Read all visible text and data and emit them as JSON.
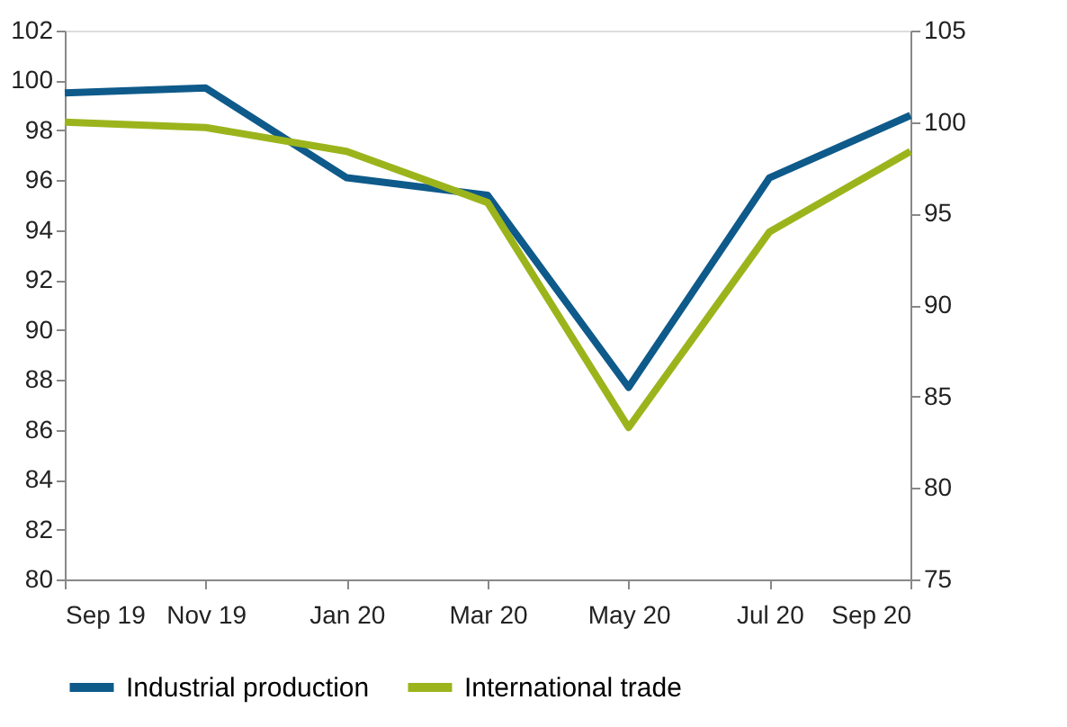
{
  "chart_data": {
    "type": "line",
    "categories": [
      "Sep 19",
      "Nov 19",
      "Jan 20",
      "Mar 20",
      "May 20",
      "Jul 20",
      "Sep 20"
    ],
    "series": [
      {
        "name": "Industrial production",
        "color": "#0e5a8a",
        "values": [
          99.5,
          99.7,
          96.1,
          95.4,
          87.7,
          96.1,
          98.6
        ]
      },
      {
        "name": "International trade",
        "color": "#9cb41c",
        "axis": "y2",
        "values": [
          100.0,
          99.7,
          98.4,
          95.6,
          83.3,
          94.0,
          98.4
        ]
      }
    ],
    "ylim": [
      80,
      102
    ],
    "yticks": [
      80,
      82,
      84,
      86,
      88,
      90,
      92,
      94,
      96,
      98,
      100,
      102
    ],
    "y2lim": [
      75,
      105
    ],
    "y2ticks": [
      75,
      80,
      85,
      90,
      95,
      100,
      105
    ],
    "grid": false,
    "legend": "bottom",
    "marker": "none",
    "line_style": "solid"
  }
}
